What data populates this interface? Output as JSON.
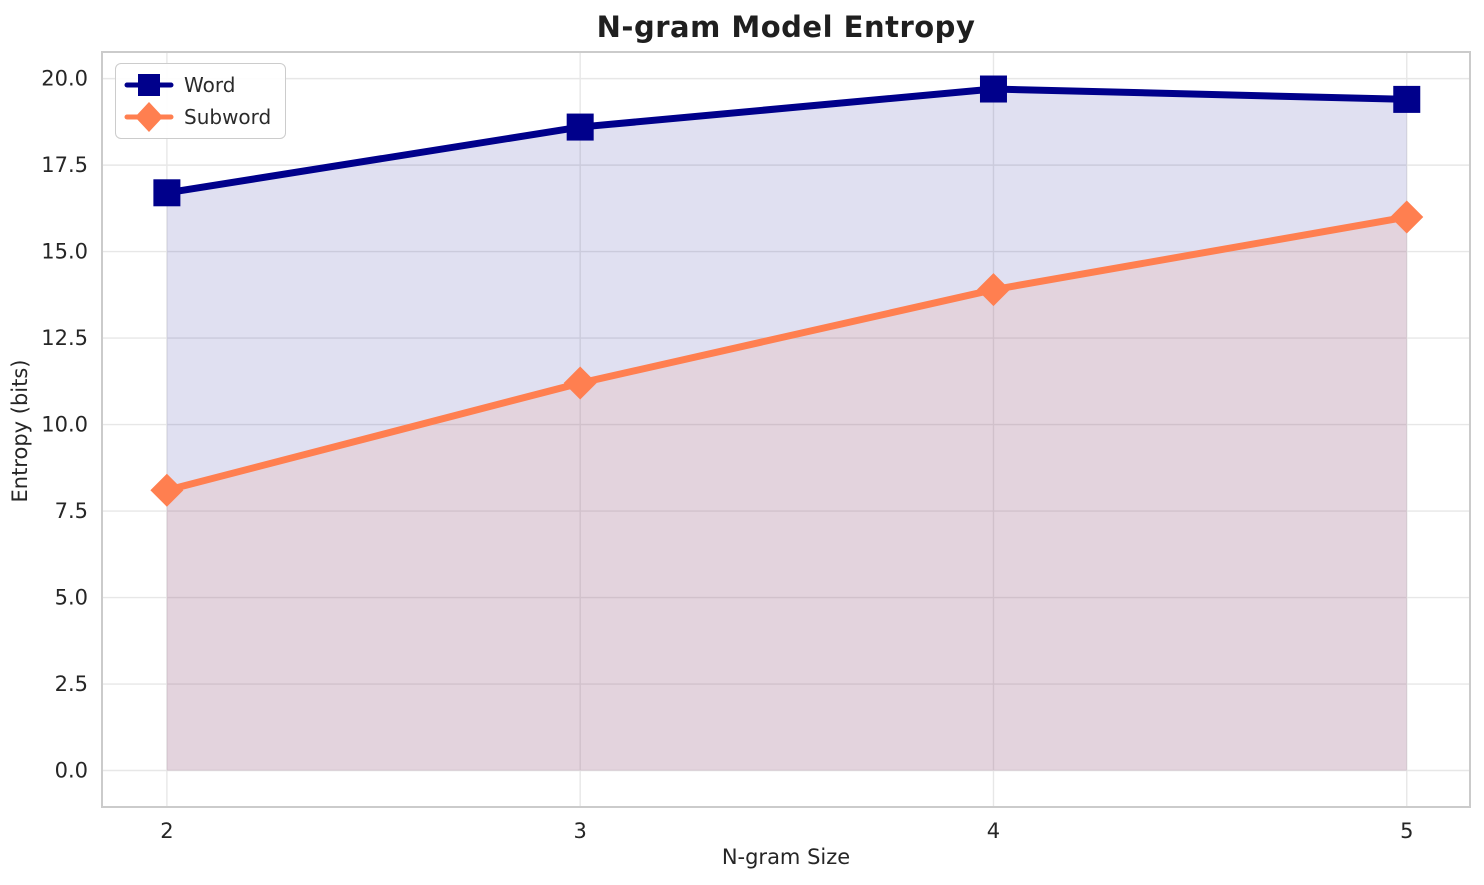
{
  "chart_data": {
    "type": "line",
    "title": "N-gram Model Entropy",
    "xlabel": "N-gram Size",
    "ylabel": "Entropy (bits)",
    "x": [
      2,
      3,
      4,
      5
    ],
    "series": [
      {
        "name": "Word",
        "values": [
          16.7,
          18.6,
          19.7,
          19.4
        ],
        "color": "#00008b",
        "marker": "square",
        "fill_to_zero": true
      },
      {
        "name": "Subword",
        "values": [
          8.1,
          11.2,
          13.9,
          16.0
        ],
        "color": "#ff7f50",
        "marker": "diamond",
        "fill_to_zero": true
      }
    ],
    "xtick_values": [
      2,
      3,
      4,
      5
    ],
    "xtick_labels": [
      "2",
      "3",
      "4",
      "5"
    ],
    "ytick_values": [
      0.0,
      2.5,
      5.0,
      7.5,
      10.0,
      12.5,
      15.0,
      17.5,
      20.0
    ],
    "ytick_labels": [
      "0.0",
      "2.5",
      "5.0",
      "7.5",
      "10.0",
      "12.5",
      "15.0",
      "17.5",
      "20.0"
    ],
    "xlim": [
      1.843,
      5.153
    ],
    "ylim": [
      -1.055,
      20.77
    ],
    "grid": true,
    "legend_position": "upper left",
    "styles": {
      "background": "#ffffff",
      "grid_color": "#e7e7e7",
      "spine_color": "#cbcbcb",
      "tick_text_color": "#262626",
      "fill_opacity": 0.12,
      "line_width": 7
    }
  }
}
